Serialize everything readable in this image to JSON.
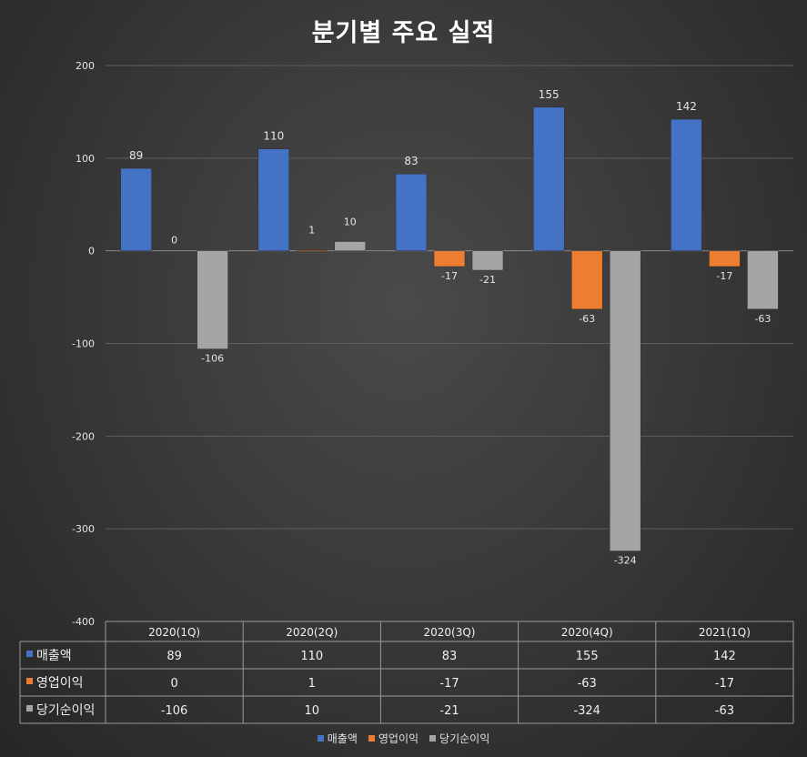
{
  "chart_data": {
    "type": "bar",
    "title": "분기별 주요 실적",
    "categories": [
      "2020(1Q)",
      "2020(2Q)",
      "2020(3Q)",
      "2020(4Q)",
      "2021(1Q)"
    ],
    "series": [
      {
        "name": "매출액",
        "values": [
          89,
          110,
          83,
          155,
          142
        ],
        "color": "#4472c4"
      },
      {
        "name": "영업이익",
        "values": [
          0,
          1,
          -17,
          -63,
          -17
        ],
        "color": "#ed7d31"
      },
      {
        "name": "당기순이익",
        "values": [
          -106,
          10,
          -21,
          -324,
          -63
        ],
        "color": "#a5a5a5"
      }
    ],
    "ylim": [
      -400,
      200
    ],
    "yticks": [
      200,
      100,
      0,
      -100,
      -200,
      -300,
      -400
    ],
    "grid": true,
    "data_table": true,
    "legend_position": "bottom"
  }
}
